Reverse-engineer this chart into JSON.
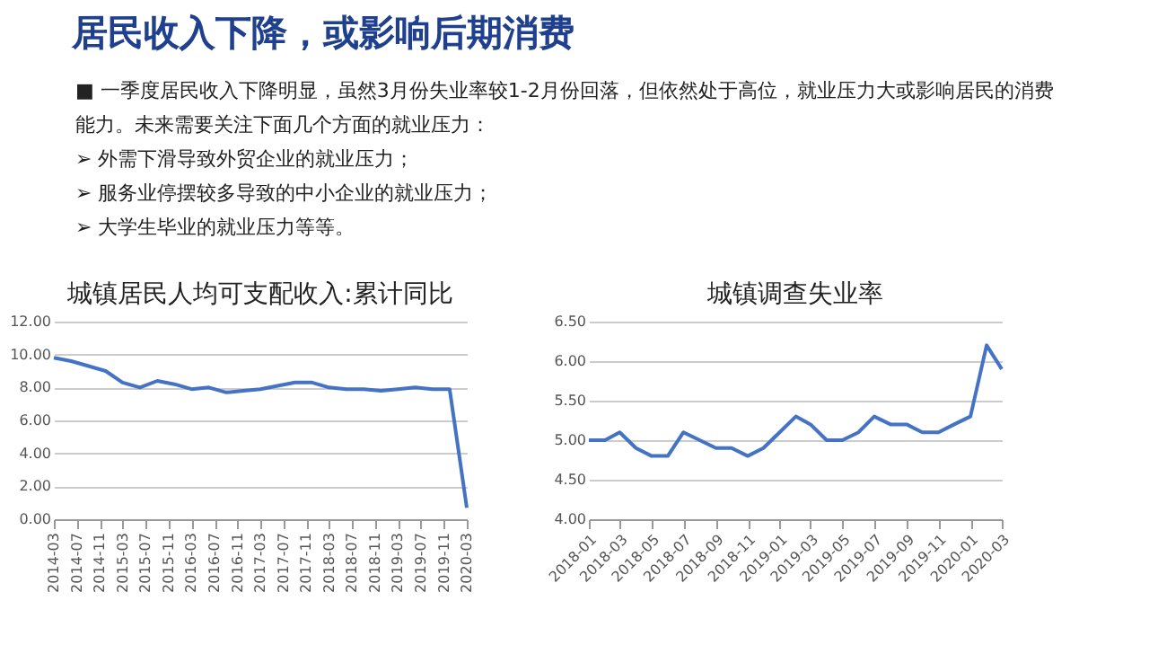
{
  "chart_data": [
    {
      "type": "other",
      "title": "居民收入下降，或影响后期消费",
      "annotations": [
        "■ 一季度居民收入下降明显，虽然3月份失业率较1-2月份回落，但依然处于高位，就业压力大或影响居民的消费能力。未来需要关注下面几个方面的就业压力：",
        "➢ 外需下滑导致外贸企业的就业压力；",
        "➢ 服务业停摆较多导致的中小企业的就业压力；",
        "➢ 大学生毕业的就业压力等等。"
      ]
    },
    {
      "type": "line",
      "title": "城镇居民人均可支配收入:累计同比",
      "x": [
        "2014-03",
        "2014-06",
        "2014-09",
        "2014-12",
        "2015-03",
        "2015-06",
        "2015-09",
        "2015-12",
        "2016-03",
        "2016-06",
        "2016-09",
        "2016-12",
        "2017-03",
        "2017-06",
        "2017-09",
        "2017-12",
        "2018-03",
        "2018-06",
        "2018-09",
        "2018-12",
        "2019-03",
        "2019-06",
        "2019-09",
        "2019-12",
        "2020-03"
      ],
      "series": [
        {
          "color": "#4472c4",
          "values": [
            9.8,
            9.6,
            9.3,
            9.0,
            8.3,
            8.0,
            8.4,
            8.2,
            7.9,
            8.0,
            7.7,
            7.8,
            7.9,
            8.1,
            8.3,
            8.3,
            8.0,
            7.9,
            7.9,
            7.8,
            7.9,
            8.0,
            7.9,
            7.9,
            0.7
          ]
        }
      ],
      "xlim": [
        "2014-03",
        "2020-03"
      ],
      "xticks": [
        "2014-03",
        "2014-07",
        "2014-11",
        "2015-03",
        "2015-07",
        "2015-11",
        "2016-03",
        "2016-07",
        "2016-11",
        "2017-03",
        "2017-07",
        "2017-11",
        "2018-03",
        "2018-07",
        "2018-11",
        "2019-03",
        "2019-07",
        "2019-11",
        "2020-03"
      ],
      "ylim": [
        0,
        12
      ],
      "yticks": [
        {
          "value": 0,
          "label": "0.00"
        },
        {
          "value": 2,
          "label": "2.00"
        },
        {
          "value": 4,
          "label": "4.00"
        },
        {
          "value": 6,
          "label": "6.00"
        },
        {
          "value": 8,
          "label": "8.00"
        },
        {
          "value": 10,
          "label": "10.00"
        },
        {
          "value": 12,
          "label": "12.00"
        }
      ],
      "grid": "y",
      "marker": "none",
      "line_style": "solid"
    },
    {
      "type": "line",
      "title": "城镇调查失业率",
      "x": [
        "2018-01",
        "2018-02",
        "2018-03",
        "2018-04",
        "2018-05",
        "2018-06",
        "2018-07",
        "2018-08",
        "2018-09",
        "2018-10",
        "2018-11",
        "2018-12",
        "2019-01",
        "2019-02",
        "2019-03",
        "2019-04",
        "2019-05",
        "2019-06",
        "2019-07",
        "2019-08",
        "2019-09",
        "2019-10",
        "2019-11",
        "2019-12",
        "2020-01",
        "2020-02",
        "2020-03"
      ],
      "series": [
        {
          "color": "#4472c4",
          "values": [
            5.0,
            5.0,
            5.1,
            4.9,
            4.8,
            4.8,
            5.1,
            5.0,
            4.9,
            4.9,
            4.8,
            4.9,
            5.1,
            5.3,
            5.2,
            5.0,
            5.0,
            5.1,
            5.3,
            5.2,
            5.2,
            5.1,
            5.1,
            5.2,
            5.3,
            6.2,
            5.9
          ]
        }
      ],
      "xlim": [
        "2018-01",
        "2020-03"
      ],
      "xticks": [
        "2018-01",
        "2018-03",
        "2018-05",
        "2018-07",
        "2018-09",
        "2018-11",
        "2019-01",
        "2019-03",
        "2019-05",
        "2019-07",
        "2019-09",
        "2019-11",
        "2020-01",
        "2020-03"
      ],
      "ylim": [
        4,
        6.5
      ],
      "yticks": [
        {
          "value": 4,
          "label": "4.00"
        },
        {
          "value": 4.5,
          "label": "4.50"
        },
        {
          "value": 5,
          "label": "5.00"
        },
        {
          "value": 5.5,
          "label": "5.50"
        },
        {
          "value": 6,
          "label": "6.00"
        },
        {
          "value": 6.5,
          "label": "6.50"
        }
      ],
      "grid": "y",
      "marker": "none",
      "line_style": "solid"
    }
  ]
}
